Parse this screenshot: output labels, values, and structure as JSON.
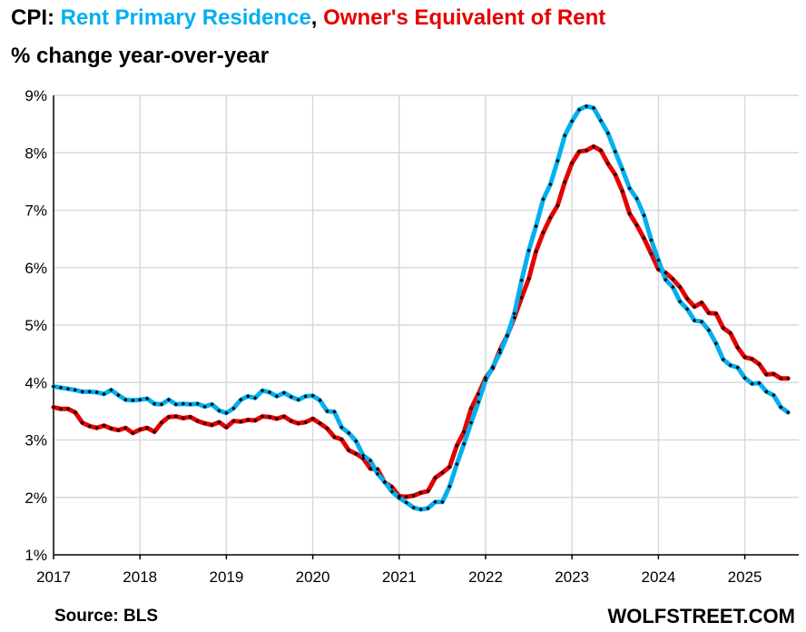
{
  "title": {
    "prefix": "CPI: ",
    "series1": "Rent Primary Residence",
    "separator": ", ",
    "series2": "Owner's Equivalent of Rent",
    "subtitle": "% change year-over-year"
  },
  "source": "Source: BLS",
  "brand": "WOLFSTREET.COM",
  "colors": {
    "rent": "#00B0F0",
    "oer": "#E60000",
    "marker": "#000000",
    "grid": "#D9D9D9"
  },
  "chart_data": {
    "type": "line",
    "x_start": "2017-01",
    "x_frequency": "monthly",
    "x_tick_labels": [
      "2017",
      "2018",
      "2019",
      "2020",
      "2021",
      "2022",
      "2023",
      "2024",
      "2025"
    ],
    "y_tick_labels": [
      "1%",
      "2%",
      "3%",
      "4%",
      "5%",
      "6%",
      "7%",
      "8%",
      "9%"
    ],
    "ylim": [
      1,
      9
    ],
    "grid": true,
    "series": [
      {
        "name": "Rent Primary Residence",
        "color": "#00B0F0",
        "values": [
          3.93,
          3.91,
          3.89,
          3.87,
          3.84,
          3.84,
          3.83,
          3.8,
          3.87,
          3.78,
          3.7,
          3.69,
          3.7,
          3.72,
          3.63,
          3.62,
          3.7,
          3.62,
          3.63,
          3.62,
          3.63,
          3.58,
          3.62,
          3.51,
          3.47,
          3.55,
          3.7,
          3.76,
          3.73,
          3.86,
          3.83,
          3.76,
          3.82,
          3.75,
          3.7,
          3.76,
          3.77,
          3.69,
          3.5,
          3.49,
          3.22,
          3.12,
          2.98,
          2.73,
          2.64,
          2.41,
          2.27,
          2.1,
          1.99,
          1.91,
          1.82,
          1.79,
          1.81,
          1.92,
          1.92,
          2.19,
          2.58,
          2.93,
          3.3,
          3.66,
          4.04,
          4.27,
          4.52,
          4.81,
          5.2,
          5.78,
          6.3,
          6.72,
          7.19,
          7.45,
          7.86,
          8.3,
          8.55,
          8.75,
          8.81,
          8.78,
          8.56,
          8.34,
          8.02,
          7.71,
          7.38,
          7.2,
          6.91,
          6.48,
          6.13,
          5.79,
          5.66,
          5.41,
          5.28,
          5.08,
          5.06,
          4.91,
          4.68,
          4.4,
          4.3,
          4.26,
          4.08,
          3.98,
          3.99,
          3.84,
          3.78,
          3.57,
          3.48
        ]
      },
      {
        "name": "Owner's Equivalent of Rent",
        "color": "#E60000",
        "values": [
          3.57,
          3.54,
          3.54,
          3.48,
          3.3,
          3.24,
          3.21,
          3.25,
          3.2,
          3.17,
          3.21,
          3.12,
          3.18,
          3.21,
          3.14,
          3.3,
          3.4,
          3.41,
          3.38,
          3.4,
          3.33,
          3.29,
          3.26,
          3.31,
          3.22,
          3.33,
          3.32,
          3.35,
          3.34,
          3.41,
          3.4,
          3.37,
          3.41,
          3.33,
          3.29,
          3.31,
          3.37,
          3.29,
          3.2,
          3.05,
          3.01,
          2.82,
          2.76,
          2.68,
          2.5,
          2.49,
          2.26,
          2.18,
          2.02,
          2.01,
          2.03,
          2.08,
          2.11,
          2.34,
          2.43,
          2.53,
          2.9,
          3.14,
          3.55,
          3.8,
          4.08,
          4.25,
          4.57,
          4.82,
          5.13,
          5.48,
          5.81,
          6.28,
          6.61,
          6.87,
          7.08,
          7.49,
          7.82,
          8.02,
          8.04,
          8.11,
          8.04,
          7.81,
          7.62,
          7.33,
          6.94,
          6.74,
          6.51,
          6.24,
          5.97,
          5.91,
          5.8,
          5.66,
          5.46,
          5.32,
          5.39,
          5.21,
          5.2,
          4.95,
          4.86,
          4.61,
          4.44,
          4.41,
          4.32,
          4.14,
          4.15,
          4.07,
          4.07
        ]
      }
    ]
  }
}
